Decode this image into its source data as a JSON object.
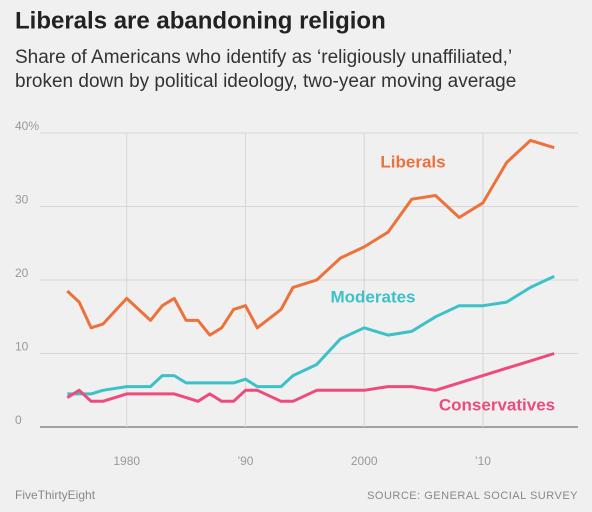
{
  "chart_data": {
    "type": "line",
    "title": "Liberals are abandoning religion",
    "subtitle": [
      "Share of Americans who identify as ‘religiously unaffiliated,’",
      "broken down by political ideology, two-year moving average"
    ],
    "x": [
      1975,
      1976,
      1977,
      1978,
      1980,
      1982,
      1983,
      1984,
      1985,
      1986,
      1987,
      1988,
      1989,
      1990,
      1991,
      1993,
      1994,
      1996,
      1998,
      2000,
      2002,
      2004,
      2006,
      2008,
      2010,
      2012,
      2014,
      2016
    ],
    "series": [
      {
        "name": "Liberals",
        "color": "#ed713a",
        "values": [
          18.5,
          17,
          13.5,
          14,
          17.5,
          14.5,
          16.5,
          17.5,
          14.5,
          14.5,
          12.5,
          13.5,
          16,
          16.5,
          13.5,
          16,
          19,
          20,
          23,
          24.5,
          26.5,
          31,
          31.5,
          28.5,
          30.5,
          36,
          39,
          38
        ]
      },
      {
        "name": "Moderates",
        "color": "#3bc1c7",
        "values": [
          4.5,
          4.5,
          4.5,
          5,
          5.5,
          5.5,
          7,
          7,
          6,
          6,
          6,
          6,
          6,
          6.5,
          5.5,
          5.5,
          7,
          8.5,
          12,
          13.5,
          12.5,
          13,
          15,
          16.5,
          16.5,
          17,
          19,
          20.5
        ]
      },
      {
        "name": "Conservatives",
        "color": "#ee4b7c",
        "values": [
          4,
          5,
          3.5,
          3.5,
          4.5,
          4.5,
          4.5,
          4.5,
          4,
          3.5,
          4.5,
          3.5,
          3.5,
          5,
          5,
          3.5,
          3.5,
          5,
          5,
          5,
          5.5,
          5.5,
          5,
          6,
          7,
          8,
          9,
          10
        ]
      }
    ],
    "xlim": [
      1972.7,
      2018
    ],
    "ylim": [
      0,
      40
    ],
    "xticks": [
      1980,
      {
        "value": 1990,
        "label": "’90"
      },
      2000,
      {
        "value": 2010,
        "label": "’10"
      }
    ],
    "yticks": [
      0,
      10,
      20,
      30,
      {
        "value": 40,
        "label": "40%"
      }
    ],
    "grid": true,
    "source": "SOURCE: GENERAL SOCIAL SURVEY",
    "brand": "FiveThirtyEight"
  }
}
